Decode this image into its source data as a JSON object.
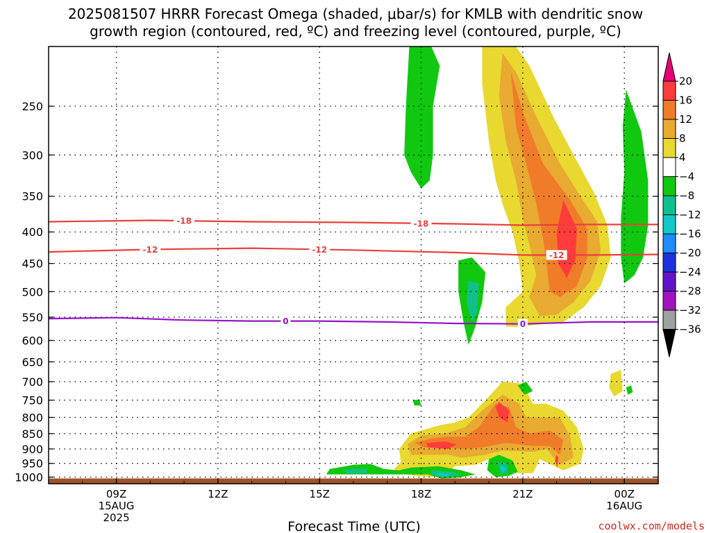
{
  "title": {
    "line1": "2025081507 HRRR Forecast Omega (shaded, μbar/s) for KMLB with dendritic snow",
    "line2": "growth region (contoured, red, ºC) and freezing level (contoured, purple, ºC)"
  },
  "credit": "coolwx.com/models",
  "chart_data": {
    "type": "time-height cross section",
    "xlabel": "Forecast Time (UTC)",
    "ylabel": "",
    "x_ticks": [
      {
        "t": 2,
        "lines": [
          "09Z",
          "15AUG",
          "2025"
        ]
      },
      {
        "t": 5,
        "lines": [
          "12Z"
        ]
      },
      {
        "t": 8,
        "lines": [
          "15Z"
        ]
      },
      {
        "t": 11,
        "lines": [
          "18Z"
        ]
      },
      {
        "t": 14,
        "lines": [
          "21Z"
        ]
      },
      {
        "t": 17,
        "lines": [
          "00Z",
          "16AUG"
        ]
      }
    ],
    "xlim_hours_after_07Z": [
      0,
      18
    ],
    "y_ticks_hPa": [
      250,
      300,
      350,
      400,
      450,
      500,
      550,
      600,
      650,
      700,
      750,
      800,
      850,
      900,
      950,
      1000
    ],
    "ylim_hPa": [
      200,
      1025
    ],
    "y_scale": "log",
    "grid": "dotted at each pressure tick",
    "colorbar": {
      "labels": [
        "20",
        "16",
        "12",
        "8",
        "4",
        "−4",
        "−8",
        "−12",
        "−16",
        "−20",
        "−24",
        "−28",
        "−32",
        "−36"
      ],
      "colors": [
        "#e60073",
        "#ff3c3c",
        "#f07c2a",
        "#e8aa30",
        "#e8d830",
        "#ffffff",
        "#10c810",
        "#10c08c",
        "#10c8c8",
        "#1e8cff",
        "#1e32dc",
        "#6414c8",
        "#a014be",
        "#a0a0a0",
        "#000000"
      ]
    },
    "dendritic_contours": [
      {
        "label": "-18",
        "color": "#e8403c",
        "points": [
          [
            0,
            385
          ],
          [
            3,
            383
          ],
          [
            6,
            385
          ],
          [
            9,
            386
          ],
          [
            12,
            388
          ],
          [
            14,
            390
          ],
          [
            16,
            389
          ],
          [
            18,
            389
          ]
        ],
        "label_at": [
          4,
          11
        ]
      },
      {
        "label": "-12",
        "color": "#e8403c",
        "points": [
          [
            0,
            431
          ],
          [
            3,
            427
          ],
          [
            6,
            425
          ],
          [
            9,
            428
          ],
          [
            12,
            432
          ],
          [
            14,
            436
          ],
          [
            16,
            436
          ],
          [
            18,
            435
          ]
        ],
        "label_at": [
          3,
          8,
          15
        ]
      }
    ],
    "freezing_level": {
      "label": "0",
      "color": "#9314c8",
      "points": [
        [
          0,
          553
        ],
        [
          2,
          551
        ],
        [
          4,
          556
        ],
        [
          6,
          558
        ],
        [
          8,
          558
        ],
        [
          10,
          560
        ],
        [
          12,
          563
        ],
        [
          14,
          564
        ],
        [
          16,
          560
        ],
        [
          18,
          560
        ]
      ],
      "label_at": [
        7,
        14
      ]
    },
    "omega_regions": [
      {
        "value": 4,
        "points": [
          [
            10.35,
            900
          ],
          [
            10.7,
            850
          ],
          [
            11.5,
            825
          ],
          [
            12,
            815
          ],
          [
            12.4,
            800
          ],
          [
            12.9,
            750
          ],
          [
            13.4,
            700
          ],
          [
            14,
            705
          ],
          [
            14.3,
            760
          ],
          [
            14.7,
            760
          ],
          [
            15.2,
            780
          ],
          [
            15.6,
            830
          ],
          [
            15.8,
            900
          ],
          [
            15.7,
            950
          ],
          [
            15.2,
            975
          ],
          [
            14.5,
            935
          ],
          [
            14.3,
            985
          ],
          [
            13.3,
            985
          ],
          [
            13,
            935
          ],
          [
            12.6,
            955
          ],
          [
            12,
            960
          ],
          [
            11.7,
            990
          ],
          [
            11.3,
            1000
          ],
          [
            10.8,
            995
          ],
          [
            10.4,
            985
          ],
          [
            10.2,
            970
          ],
          [
            10.4,
            945
          ]
        ]
      },
      {
        "value": 8,
        "points": [
          [
            10.6,
            885
          ],
          [
            11,
            855
          ],
          [
            11.7,
            850
          ],
          [
            12.3,
            830
          ],
          [
            12.8,
            780
          ],
          [
            13.4,
            735
          ],
          [
            13.9,
            760
          ],
          [
            14.1,
            800
          ],
          [
            14.5,
            800
          ],
          [
            15.1,
            800
          ],
          [
            15.4,
            860
          ],
          [
            15.5,
            930
          ],
          [
            15.1,
            955
          ],
          [
            14.7,
            900
          ],
          [
            14.3,
            910
          ],
          [
            13.4,
            905
          ],
          [
            12.9,
            920
          ],
          [
            12.2,
            930
          ],
          [
            11.8,
            920
          ],
          [
            11.1,
            920
          ],
          [
            10.7,
            920
          ]
        ]
      },
      {
        "value": 12,
        "points": [
          [
            10.8,
            880
          ],
          [
            11.3,
            865
          ],
          [
            11.8,
            860
          ],
          [
            12.3,
            860
          ],
          [
            12.7,
            830
          ],
          [
            13.2,
            760
          ],
          [
            13.6,
            770
          ],
          [
            13.8,
            830
          ],
          [
            14.2,
            850
          ],
          [
            14.8,
            840
          ],
          [
            15.2,
            870
          ],
          [
            15.1,
            920
          ],
          [
            14.8,
            890
          ],
          [
            14.3,
            890
          ],
          [
            13.5,
            880
          ],
          [
            12.8,
            895
          ],
          [
            12.3,
            900
          ],
          [
            11.7,
            895
          ],
          [
            11.1,
            895
          ]
        ]
      },
      {
        "value": 16,
        "points": [
          [
            11.15,
            880
          ],
          [
            11.7,
            875
          ],
          [
            12.05,
            885
          ],
          [
            11.8,
            900
          ],
          [
            11.2,
            895
          ]
        ]
      },
      {
        "value": 16,
        "points": [
          [
            13.3,
            755
          ],
          [
            13.6,
            780
          ],
          [
            13.55,
            815
          ],
          [
            13.3,
            800
          ],
          [
            13.2,
            770
          ]
        ]
      },
      {
        "value": 16,
        "points": [
          [
            15.0,
            920
          ],
          [
            15.05,
            930
          ],
          [
            15.02,
            965
          ],
          [
            14.95,
            940
          ]
        ]
      },
      {
        "value": 4,
        "points": [
          [
            12.8,
            200
          ],
          [
            13.8,
            200
          ],
          [
            14.2,
            215
          ],
          [
            14.9,
            260
          ],
          [
            15.5,
            300
          ],
          [
            16.1,
            345
          ],
          [
            16.5,
            390
          ],
          [
            16.6,
            440
          ],
          [
            16.3,
            490
          ],
          [
            15.8,
            530
          ],
          [
            15.2,
            560
          ],
          [
            14.5,
            565
          ],
          [
            13.9,
            570
          ],
          [
            13.5,
            570
          ],
          [
            13.5,
            530
          ],
          [
            14,
            500
          ],
          [
            13.9,
            450
          ],
          [
            13.7,
            400
          ],
          [
            13.4,
            360
          ],
          [
            13.2,
            330
          ],
          [
            13,
            285
          ],
          [
            12.8,
            230
          ]
        ]
      },
      {
        "value": 8,
        "points": [
          [
            13.4,
            205
          ],
          [
            13.8,
            220
          ],
          [
            14.4,
            260
          ],
          [
            15.1,
            310
          ],
          [
            15.7,
            350
          ],
          [
            16.2,
            385
          ],
          [
            16.3,
            430
          ],
          [
            16,
            480
          ],
          [
            15.5,
            520
          ],
          [
            15,
            545
          ],
          [
            14.5,
            548
          ],
          [
            14.2,
            510
          ],
          [
            14.4,
            470
          ],
          [
            14.2,
            420
          ],
          [
            14,
            380
          ],
          [
            13.8,
            330
          ],
          [
            13.5,
            285
          ],
          [
            13.3,
            240
          ]
        ]
      },
      {
        "value": 12,
        "points": [
          [
            13.65,
            220
          ],
          [
            14.05,
            260
          ],
          [
            14.6,
            310
          ],
          [
            15.4,
            355
          ],
          [
            15.9,
            395
          ],
          [
            15.9,
            440
          ],
          [
            15.6,
            490
          ],
          [
            15.1,
            510
          ],
          [
            14.8,
            500
          ],
          [
            14.7,
            450
          ],
          [
            14.6,
            410
          ],
          [
            14.4,
            360
          ],
          [
            14.1,
            310
          ],
          [
            13.8,
            270
          ]
        ]
      },
      {
        "value": 16,
        "points": [
          [
            15.2,
            355
          ],
          [
            15.6,
            395
          ],
          [
            15.55,
            445
          ],
          [
            15.3,
            475
          ],
          [
            15.05,
            450
          ],
          [
            15,
            400
          ]
        ]
      },
      {
        "value": 4,
        "points": [
          [
            16.6,
            680
          ],
          [
            16.9,
            670
          ],
          [
            16.95,
            725
          ],
          [
            16.7,
            740
          ],
          [
            16.55,
            715
          ]
        ]
      },
      {
        "value": -4,
        "points": [
          [
            10.65,
            200
          ],
          [
            11.3,
            200
          ],
          [
            11.55,
            215
          ],
          [
            11.35,
            250
          ],
          [
            11.35,
            300
          ],
          [
            11.25,
            330
          ],
          [
            11,
            340
          ],
          [
            10.7,
            320
          ],
          [
            10.5,
            300
          ],
          [
            10.55,
            250
          ]
        ]
      },
      {
        "value": -4,
        "points": [
          [
            12.1,
            445
          ],
          [
            12.5,
            440
          ],
          [
            12.9,
            465
          ],
          [
            12.8,
            520
          ],
          [
            12.6,
            570
          ],
          [
            12.4,
            610
          ],
          [
            12.25,
            560
          ],
          [
            12.1,
            500
          ]
        ]
      },
      {
        "value": -8,
        "points": [
          [
            12.4,
            480
          ],
          [
            12.7,
            485
          ],
          [
            12.65,
            540
          ],
          [
            12.5,
            560
          ],
          [
            12.35,
            520
          ]
        ]
      },
      {
        "value": -4,
        "points": [
          [
            17.05,
            235
          ],
          [
            17.5,
            275
          ],
          [
            17.7,
            330
          ],
          [
            17.7,
            390
          ],
          [
            17.55,
            440
          ],
          [
            17.3,
            470
          ],
          [
            17.0,
            485
          ],
          [
            16.9,
            440
          ],
          [
            16.9,
            380
          ],
          [
            17,
            320
          ],
          [
            16.95,
            270
          ]
        ]
      },
      {
        "value": -4,
        "points": [
          [
            13.0,
            935
          ],
          [
            13.3,
            920
          ],
          [
            13.7,
            940
          ],
          [
            13.85,
            980
          ],
          [
            13.6,
            995
          ],
          [
            13.2,
            1000
          ],
          [
            12.95,
            975
          ]
        ]
      },
      {
        "value": -8,
        "points": [
          [
            13.25,
            945
          ],
          [
            13.55,
            950
          ],
          [
            13.55,
            985
          ],
          [
            13.35,
            990
          ]
        ]
      },
      {
        "value": -12,
        "points": [
          [
            13.32,
            958
          ],
          [
            13.5,
            965
          ],
          [
            13.42,
            985
          ]
        ]
      },
      {
        "value": -4,
        "points": [
          [
            10.7,
            965
          ],
          [
            11.5,
            960
          ],
          [
            12.2,
            975
          ],
          [
            12.6,
            990
          ],
          [
            12.1,
            1002
          ],
          [
            11.6,
            1005
          ],
          [
            11.2,
            990
          ],
          [
            10.5,
            990
          ],
          [
            8.2,
            990
          ],
          [
            8.3,
            970
          ],
          [
            9,
            955
          ],
          [
            9.5,
            952
          ],
          [
            9.9,
            970
          ],
          [
            10.35,
            975
          ]
        ]
      },
      {
        "value": -8,
        "points": [
          [
            11.3,
            975
          ],
          [
            11.9,
            980
          ],
          [
            12.2,
            992
          ],
          [
            11.7,
            1000
          ],
          [
            11.3,
            990
          ]
        ]
      },
      {
        "value": -12,
        "points": [
          [
            11.5,
            985
          ],
          [
            11.85,
            990
          ],
          [
            11.7,
            998
          ],
          [
            11.45,
            995
          ]
        ]
      },
      {
        "value": -8,
        "points": [
          [
            8.7,
            972
          ],
          [
            9.4,
            970
          ],
          [
            9.4,
            985
          ],
          [
            8.8,
            987
          ]
        ]
      },
      {
        "value": -4,
        "points": [
          [
            13.85,
            710
          ],
          [
            14.1,
            700
          ],
          [
            14.3,
            725
          ],
          [
            14.05,
            735
          ]
        ]
      },
      {
        "value": -4,
        "points": [
          [
            10.75,
            750
          ],
          [
            10.95,
            748
          ],
          [
            11.0,
            765
          ],
          [
            10.8,
            765
          ]
        ]
      },
      {
        "value": -4,
        "points": [
          [
            17.05,
            715
          ],
          [
            17.2,
            710
          ],
          [
            17.25,
            728
          ],
          [
            17.1,
            735
          ]
        ]
      }
    ],
    "surface": {
      "color": "#a05228",
      "from_hPa": 1005
    }
  }
}
